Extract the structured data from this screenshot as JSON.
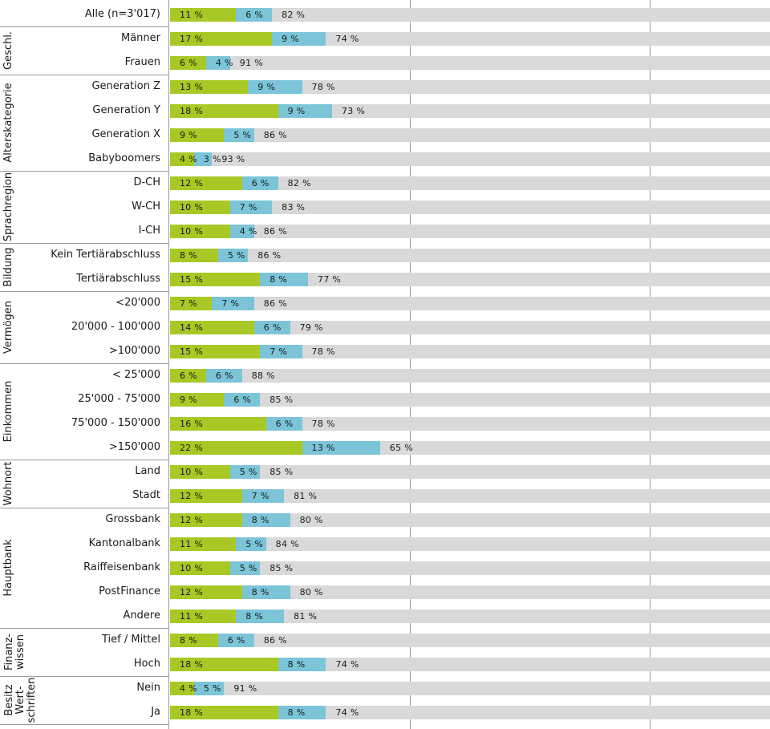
{
  "chart_data": {
    "type": "bar",
    "orientation": "horizontal",
    "stacked": true,
    "xlim": [
      0,
      100
    ],
    "unit": "%",
    "colors": {
      "yes": "#a8c826",
      "later": "#7cc4d8",
      "no": "#d9d9d9"
    },
    "rows": [
      {
        "group": "",
        "label": "Alle (n=3'017)",
        "yes": 11,
        "later": 6,
        "no": 82
      },
      {
        "group": "Geschl.",
        "label": "Männer",
        "yes": 17,
        "later": 9,
        "no": 74
      },
      {
        "group": "Geschl.",
        "label": "Frauen",
        "yes": 6,
        "later": 4,
        "no": 91
      },
      {
        "group": "Alterskategorie",
        "label": "Generation Z",
        "yes": 13,
        "later": 9,
        "no": 78
      },
      {
        "group": "Alterskategorie",
        "label": "Generation Y",
        "yes": 18,
        "later": 9,
        "no": 73
      },
      {
        "group": "Alterskategorie",
        "label": "Generation X",
        "yes": 9,
        "later": 5,
        "no": 86
      },
      {
        "group": "Alterskategorie",
        "label": "Babyboomers",
        "yes": 4,
        "later": 3,
        "no": 93
      },
      {
        "group": "Sprachregion",
        "label": "D-CH",
        "yes": 12,
        "later": 6,
        "no": 82
      },
      {
        "group": "Sprachregion",
        "label": "W-CH",
        "yes": 10,
        "later": 7,
        "no": 83
      },
      {
        "group": "Sprachregion",
        "label": "I-CH",
        "yes": 10,
        "later": 4,
        "no": 86
      },
      {
        "group": "Bildung",
        "label": "Kein Tertiärabschluss",
        "yes": 8,
        "later": 5,
        "no": 86
      },
      {
        "group": "Bildung",
        "label": "Tertiärabschluss",
        "yes": 15,
        "later": 8,
        "no": 77
      },
      {
        "group": "Vermögen",
        "label": "<20'000",
        "yes": 7,
        "later": 7,
        "no": 86
      },
      {
        "group": "Vermögen",
        "label": "20'000 - 100'000",
        "yes": 14,
        "later": 6,
        "no": 79
      },
      {
        "group": "Vermögen",
        "label": ">100'000",
        "yes": 15,
        "later": 7,
        "no": 78
      },
      {
        "group": "Einkommen",
        "label": "< 25'000",
        "yes": 6,
        "later": 6,
        "no": 88
      },
      {
        "group": "Einkommen",
        "label": "25'000 - 75'000",
        "yes": 9,
        "later": 6,
        "no": 85
      },
      {
        "group": "Einkommen",
        "label": "75'000 - 150'000",
        "yes": 16,
        "later": 6,
        "no": 78
      },
      {
        "group": "Einkommen",
        "label": ">150'000",
        "yes": 22,
        "later": 13,
        "no": 65
      },
      {
        "group": "Wohnort",
        "label": "Land",
        "yes": 10,
        "later": 5,
        "no": 85
      },
      {
        "group": "Wohnort",
        "label": "Stadt",
        "yes": 12,
        "later": 7,
        "no": 81
      },
      {
        "group": "Hauptbank",
        "label": "Grossbank",
        "yes": 12,
        "later": 8,
        "no": 80
      },
      {
        "group": "Hauptbank",
        "label": "Kantonalbank",
        "yes": 11,
        "later": 5,
        "no": 84
      },
      {
        "group": "Hauptbank",
        "label": "Raiffeisenbank",
        "yes": 10,
        "later": 5,
        "no": 85
      },
      {
        "group": "Hauptbank",
        "label": "PostFinance",
        "yes": 12,
        "later": 8,
        "no": 80
      },
      {
        "group": "Hauptbank",
        "label": "Andere",
        "yes": 11,
        "later": 8,
        "no": 81
      },
      {
        "group": "Finanzwissen",
        "label": "Tief / Mittel",
        "yes": 8,
        "later": 6,
        "no": 86
      },
      {
        "group": "Finanzwissen",
        "label": "Hoch",
        "yes": 18,
        "later": 8,
        "no": 74
      },
      {
        "group": "Besitz Wertschriften",
        "label": "Nein",
        "yes": 4,
        "later": 5,
        "no": 91
      },
      {
        "group": "Besitz Wertschriften",
        "label": "Ja",
        "yes": 18,
        "later": 8,
        "no": 74
      }
    ],
    "groups": [
      {
        "name": "Geschl.",
        "lines": [
          "Geschl."
        ]
      },
      {
        "name": "Alterskategorie",
        "lines": [
          "Alterskategorie"
        ]
      },
      {
        "name": "Sprachregion",
        "lines": [
          "Sprachregion"
        ]
      },
      {
        "name": "Bildung",
        "lines": [
          "Bildung"
        ]
      },
      {
        "name": "Vermögen",
        "lines": [
          "Vermögen"
        ]
      },
      {
        "name": "Einkommen",
        "lines": [
          "Einkommen"
        ]
      },
      {
        "name": "Wohnort",
        "lines": [
          "Wohnort"
        ]
      },
      {
        "name": "Hauptbank",
        "lines": [
          "Hauptbank"
        ]
      },
      {
        "name": "Finanzwissen",
        "lines": [
          "Finanz-",
          "wissen"
        ]
      },
      {
        "name": "Besitz Wertschriften",
        "lines": [
          "Besitz",
          "Wert-",
          "schriften"
        ]
      }
    ]
  }
}
